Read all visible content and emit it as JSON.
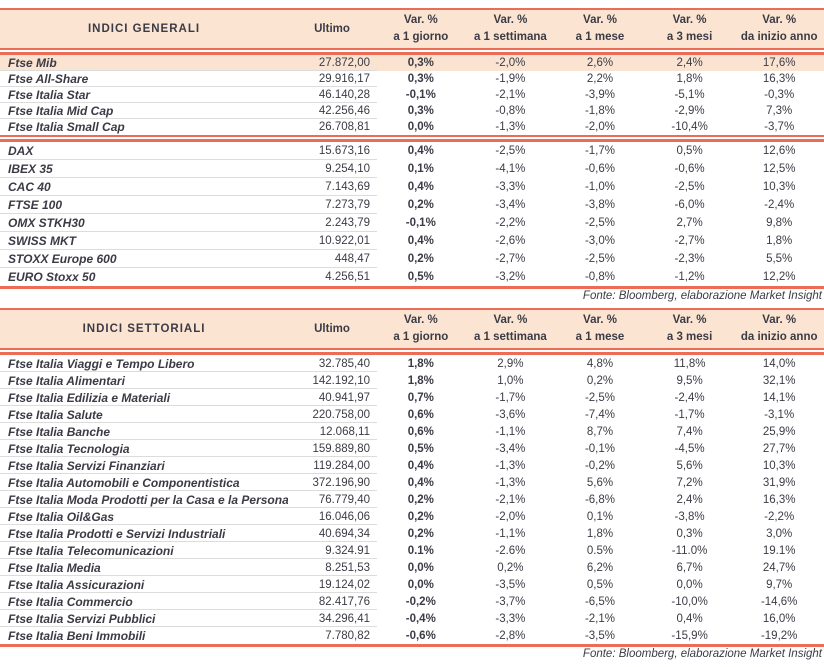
{
  "colors": {
    "accent": "#ED6C55",
    "header_bg": "#FBE5D2",
    "highlight_row_bg": "#FAE3D0",
    "row_separator": "#DCDCDC",
    "text": "#3B3B46"
  },
  "tables": [
    {
      "title": "INDICI GENERALI",
      "ultimo_header": "Ultimo",
      "var_headers": [
        {
          "line1": "Var. %",
          "line2": "a 1 giorno"
        },
        {
          "line1": "Var. %",
          "line2": "a 1 settimana"
        },
        {
          "line1": "Var. %",
          "line2": "a 1 mese"
        },
        {
          "line1": "Var. %",
          "line2": "a 3 mesi"
        },
        {
          "line1": "Var. %",
          "line2": "da inizio anno"
        }
      ],
      "groups": [
        {
          "rows": [
            {
              "label": "Ftse Mib",
              "ultimo": "27.872,00",
              "vars": [
                "0,3%",
                "-2,0%",
                "2,6%",
                "2,4%",
                "17,6%"
              ],
              "highlight": true
            },
            {
              "label": "Ftse All-Share",
              "ultimo": "29.916,17",
              "vars": [
                "0,3%",
                "-1,9%",
                "2,2%",
                "1,8%",
                "16,3%"
              ],
              "highlight": false
            },
            {
              "label": "Ftse Italia Star",
              "ultimo": "46.140,28",
              "vars": [
                "-0,1%",
                "-2,1%",
                "-3,9%",
                "-5,1%",
                "-0,3%"
              ],
              "highlight": false
            },
            {
              "label": "Ftse Italia Mid Cap",
              "ultimo": "42.256,46",
              "vars": [
                "0,3%",
                "-0,8%",
                "-1,8%",
                "-2,9%",
                "7,3%"
              ],
              "highlight": false
            },
            {
              "label": "Ftse Italia Small Cap",
              "ultimo": "26.708,81",
              "vars": [
                "0,0%",
                "-1,3%",
                "-2,0%",
                "-10,4%",
                "-3,7%"
              ],
              "highlight": false
            }
          ]
        },
        {
          "rows": [
            {
              "label": "DAX",
              "ultimo": "15.673,16",
              "vars": [
                "0,4%",
                "-2,5%",
                "-1,7%",
                "0,5%",
                "12,6%"
              ],
              "highlight": false
            },
            {
              "label": "IBEX 35",
              "ultimo": "9.254,10",
              "vars": [
                "0,1%",
                "-4,1%",
                "-0,6%",
                "-0,6%",
                "12,5%"
              ],
              "highlight": false
            },
            {
              "label": "CAC 40",
              "ultimo": "7.143,69",
              "vars": [
                "0,4%",
                "-3,3%",
                "-1,0%",
                "-2,5%",
                "10,3%"
              ],
              "highlight": false
            },
            {
              "label": "FTSE 100",
              "ultimo": "7.273,79",
              "vars": [
                "0,2%",
                "-3,4%",
                "-3,8%",
                "-6,0%",
                "-2,4%"
              ],
              "highlight": false
            },
            {
              "label": "OMX STKH30",
              "ultimo": "2.243,79",
              "vars": [
                "-0,1%",
                "-2,2%",
                "-2,5%",
                "2,7%",
                "9,8%"
              ],
              "highlight": false
            },
            {
              "label": "SWISS MKT",
              "ultimo": "10.922,01",
              "vars": [
                "0,4%",
                "-2,6%",
                "-3,0%",
                "-2,7%",
                "1,8%"
              ],
              "highlight": false
            },
            {
              "label": "STOXX Europe 600",
              "ultimo": "448,47",
              "vars": [
                "0,2%",
                "-2,7%",
                "-2,5%",
                "-2,3%",
                "5,5%"
              ],
              "highlight": false
            },
            {
              "label": "EURO Stoxx 50",
              "ultimo": "4.256,51",
              "vars": [
                "0,5%",
                "-3,2%",
                "-0,8%",
                "-1,2%",
                "12,2%"
              ],
              "highlight": false
            }
          ]
        }
      ],
      "fonte": "Fonte: Bloomberg, elaborazione Market Insight"
    },
    {
      "title": "INDICI SETTORIALI",
      "ultimo_header": "Ultimo",
      "var_headers": [
        {
          "line1": "Var. %",
          "line2": "a 1 giorno"
        },
        {
          "line1": "Var. %",
          "line2": "a 1 settimana"
        },
        {
          "line1": "Var. %",
          "line2": "a 1 mese"
        },
        {
          "line1": "Var. %",
          "line2": "a 3 mesi"
        },
        {
          "line1": "Var. %",
          "line2": "da inizio anno"
        }
      ],
      "groups": [
        {
          "rows": [
            {
              "label": "Ftse Italia Viaggi e Tempo Libero",
              "ultimo": "32.785,40",
              "vars": [
                "1,8%",
                "2,9%",
                "4,8%",
                "11,8%",
                "14,0%"
              ],
              "highlight": false
            },
            {
              "label": "Ftse Italia Alimentari",
              "ultimo": "142.192,10",
              "vars": [
                "1,8%",
                "1,0%",
                "0,2%",
                "9,5%",
                "32,1%"
              ],
              "highlight": false
            },
            {
              "label": "Ftse Italia Edilizia e Materiali",
              "ultimo": "40.941,97",
              "vars": [
                "0,7%",
                "-1,7%",
                "-2,5%",
                "-2,4%",
                "14,1%"
              ],
              "highlight": false
            },
            {
              "label": "Ftse Italia Salute",
              "ultimo": "220.758,00",
              "vars": [
                "0,6%",
                "-3,6%",
                "-7,4%",
                "-1,7%",
                "-3,1%"
              ],
              "highlight": false
            },
            {
              "label": "Ftse Italia Banche",
              "ultimo": "12.068,11",
              "vars": [
                "0,6%",
                "-1,1%",
                "8,7%",
                "7,4%",
                "25,9%"
              ],
              "highlight": false
            },
            {
              "label": "Ftse Italia Tecnologia",
              "ultimo": "159.889,80",
              "vars": [
                "0,5%",
                "-3,4%",
                "-0,1%",
                "-4,5%",
                "27,7%"
              ],
              "highlight": false
            },
            {
              "label": "Ftse Italia Servizi Finanziari",
              "ultimo": "119.284,00",
              "vars": [
                "0,4%",
                "-1,3%",
                "-0,2%",
                "5,6%",
                "10,3%"
              ],
              "highlight": false
            },
            {
              "label": "Ftse Italia Automobili e Componentistica",
              "ultimo": "372.196,90",
              "vars": [
                "0,4%",
                "-1,3%",
                "5,6%",
                "7,2%",
                "31,9%"
              ],
              "highlight": false
            },
            {
              "label": "Ftse Italia Moda Prodotti per la Casa e la Persona",
              "ultimo": "76.779,40",
              "vars": [
                "0,2%",
                "-2,1%",
                "-6,8%",
                "2,4%",
                "16,3%"
              ],
              "highlight": false
            },
            {
              "label": "Ftse Italia Oil&Gas",
              "ultimo": "16.046,06",
              "vars": [
                "0,2%",
                "-2,0%",
                "0,1%",
                "-3,8%",
                "-2,2%"
              ],
              "highlight": false
            },
            {
              "label": "Ftse Italia Prodotti e Servizi Industriali",
              "ultimo": "40.694,34",
              "vars": [
                "0,2%",
                "-1,1%",
                "1,8%",
                "0,3%",
                "3,0%"
              ],
              "highlight": false
            },
            {
              "label": "Ftse Italia Telecomunicazioni",
              "ultimo": "9.324.91",
              "vars": [
                "0.1%",
                "-2.6%",
                "0.5%",
                "-11.0%",
                "19.1%"
              ],
              "highlight": false
            },
            {
              "label": "Ftse Italia Media",
              "ultimo": "8.251,53",
              "vars": [
                "0,0%",
                "0,2%",
                "6,2%",
                "6,7%",
                "24,7%"
              ],
              "highlight": false
            },
            {
              "label": "Ftse Italia Assicurazioni",
              "ultimo": "19.124,02",
              "vars": [
                "0,0%",
                "-3,5%",
                "0,5%",
                "0,0%",
                "9,7%"
              ],
              "highlight": false
            },
            {
              "label": "Ftse Italia Commercio",
              "ultimo": "82.417,76",
              "vars": [
                "-0,2%",
                "-3,7%",
                "-6,5%",
                "-10,0%",
                "-14,6%"
              ],
              "highlight": false
            },
            {
              "label": "Ftse Italia Servizi Pubblici",
              "ultimo": "34.296,41",
              "vars": [
                "-0,4%",
                "-3,3%",
                "-2,1%",
                "0,4%",
                "16,0%"
              ],
              "highlight": false
            },
            {
              "label": "Ftse Italia Beni Immobili",
              "ultimo": "7.780,82",
              "vars": [
                "-0,6%",
                "-2,8%",
                "-3,5%",
                "-15,9%",
                "-19,2%"
              ],
              "highlight": false
            }
          ]
        }
      ],
      "fonte": "Fonte: Bloomberg, elaborazione Market Insight"
    }
  ]
}
